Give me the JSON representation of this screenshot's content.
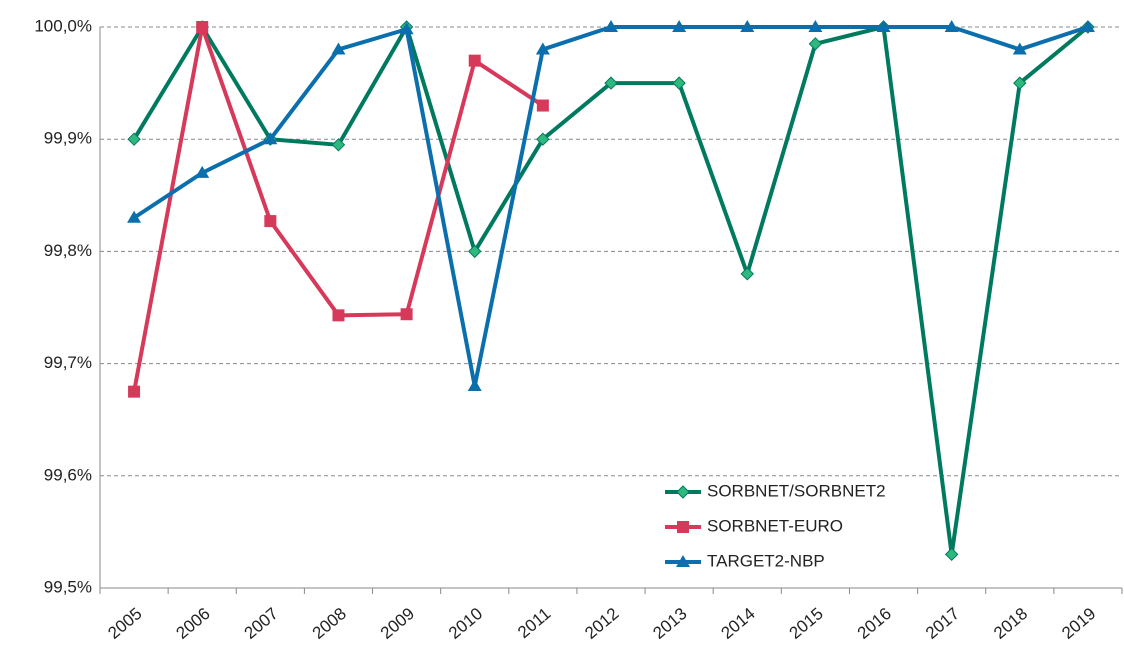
{
  "chart_data": {
    "type": "line",
    "categories": [
      "2005",
      "2006",
      "2007",
      "2008",
      "2009",
      "2010",
      "2011",
      "2012",
      "2013",
      "2014",
      "2015",
      "2016",
      "2017",
      "2018",
      "2019"
    ],
    "series": [
      {
        "name": "SORBNET/SORBNET2",
        "color": "#007a5e",
        "marker": "diamond",
        "values": [
          99.9,
          100.0,
          99.9,
          99.895,
          100.0,
          99.8,
          99.9,
          99.95,
          99.95,
          99.78,
          99.985,
          100.0,
          99.53,
          99.95,
          100.0
        ]
      },
      {
        "name": "SORBNET-EURO",
        "color": "#d6395a",
        "marker": "square",
        "values": [
          99.675,
          100.0,
          99.827,
          99.743,
          99.744,
          99.97,
          99.93,
          null,
          null,
          null,
          null,
          null,
          null,
          null,
          null
        ]
      },
      {
        "name": "TARGET2-NBP",
        "color": "#0b6fae",
        "marker": "triangle",
        "values": [
          99.83,
          99.87,
          99.9,
          99.98,
          99.998,
          99.68,
          99.98,
          100.0,
          100.0,
          100.0,
          100.0,
          100.0,
          100.0,
          99.98,
          100.0
        ]
      }
    ],
    "ylim": [
      99.5,
      100.0
    ],
    "yticks": [
      {
        "value": 99.5,
        "label": "99,5%"
      },
      {
        "value": 99.6,
        "label": "99,6%"
      },
      {
        "value": 99.7,
        "label": "99,7%"
      },
      {
        "value": 99.8,
        "label": "99,8%"
      },
      {
        "value": 99.9,
        "label": "99,9%"
      },
      {
        "value": 100.0,
        "label": "100,0%"
      }
    ],
    "grid": true,
    "legend": "lower right"
  }
}
